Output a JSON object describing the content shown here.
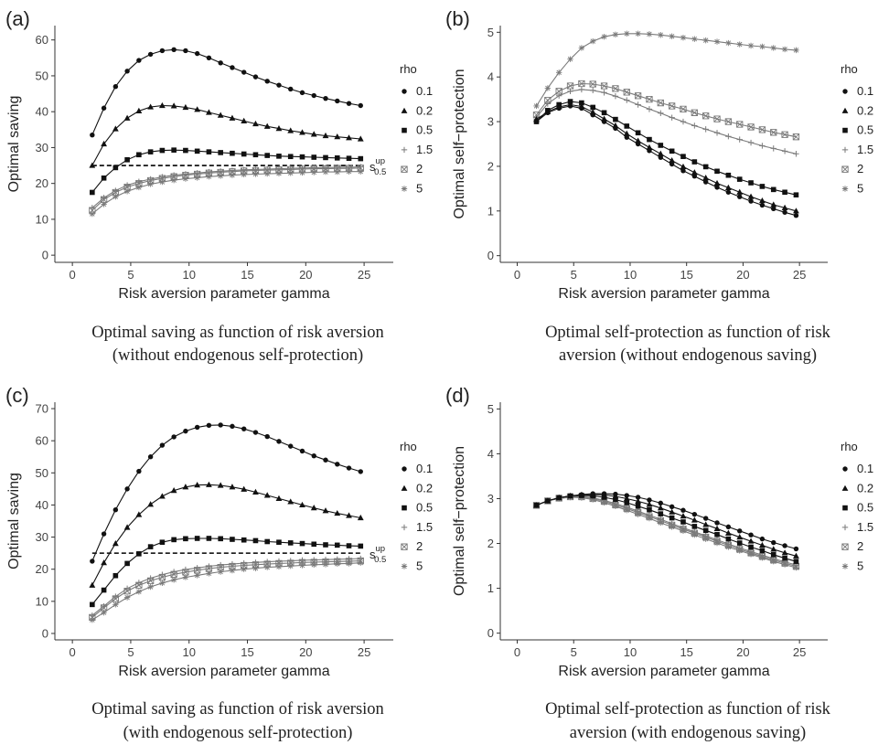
{
  "chart_data": [
    {
      "type": "line",
      "panel_label": "(a)",
      "caption_lines": [
        "Optimal saving as function of risk aversion",
        "(without endogenous self-protection)"
      ],
      "xlabel": "Risk aversion parameter gamma",
      "ylabel": "Optimal saving",
      "xlim": [
        -1.5,
        27.5
      ],
      "ylim": [
        -2,
        64
      ],
      "xticks": [
        0,
        5,
        10,
        15,
        20,
        25
      ],
      "yticks": [
        0,
        10,
        20,
        30,
        40,
        50,
        60
      ],
      "grid": false,
      "legend": {
        "title": "rho",
        "position": "right",
        "entries": [
          "0.1",
          "0.2",
          "0.5",
          "1.5",
          "2",
          "5"
        ]
      },
      "x": [
        1.7,
        2.7,
        3.7,
        4.7,
        5.7,
        6.7,
        7.7,
        8.7,
        9.7,
        10.7,
        11.7,
        12.7,
        13.7,
        14.7,
        15.7,
        16.7,
        17.7,
        18.7,
        19.7,
        20.7,
        21.7,
        22.7,
        23.7,
        24.7
      ],
      "series": [
        {
          "name": "0.1",
          "marker": "circle",
          "values": [
            33.5,
            41.0,
            47.0,
            51.3,
            54.3,
            56.0,
            57.0,
            57.3,
            57.0,
            56.2,
            55.0,
            53.6,
            52.3,
            51.0,
            49.7,
            48.5,
            47.4,
            46.3,
            45.3,
            44.5,
            43.7,
            43.0,
            42.3,
            41.7
          ]
        },
        {
          "name": "0.2",
          "marker": "triangle",
          "values": [
            25.0,
            31.0,
            35.2,
            38.2,
            40.2,
            41.3,
            41.7,
            41.6,
            41.2,
            40.6,
            39.8,
            39.0,
            38.2,
            37.4,
            36.6,
            35.9,
            35.3,
            34.7,
            34.2,
            33.7,
            33.3,
            33.0,
            32.7,
            32.4
          ]
        },
        {
          "name": "0.5",
          "marker": "square",
          "values": [
            17.5,
            21.5,
            24.4,
            26.6,
            28.0,
            28.8,
            29.2,
            29.3,
            29.2,
            29.0,
            28.8,
            28.6,
            28.4,
            28.2,
            28.0,
            27.8,
            27.6,
            27.5,
            27.4,
            27.3,
            27.2,
            27.1,
            27.0,
            26.9
          ]
        },
        {
          "name": "1.5",
          "marker": "plus",
          "values": [
            13.2,
            16.0,
            18.0,
            19.5,
            20.5,
            21.2,
            21.8,
            22.3,
            22.6,
            22.9,
            23.2,
            23.4,
            23.6,
            23.8,
            23.9,
            24.0,
            24.1,
            24.2,
            24.3,
            24.4,
            24.4,
            24.5,
            24.5,
            24.6
          ]
        },
        {
          "name": "2",
          "marker": "boxx",
          "values": [
            12.5,
            15.5,
            17.5,
            19.0,
            20.0,
            20.8,
            21.4,
            21.9,
            22.3,
            22.6,
            22.9,
            23.1,
            23.3,
            23.5,
            23.6,
            23.7,
            23.8,
            23.9,
            24.0,
            24.1,
            24.1,
            24.2,
            24.2,
            24.3
          ]
        },
        {
          "name": "5",
          "marker": "star",
          "values": [
            11.5,
            14.2,
            16.3,
            17.8,
            18.9,
            19.8,
            20.4,
            20.9,
            21.3,
            21.6,
            21.9,
            22.1,
            22.3,
            22.5,
            22.6,
            22.7,
            22.8,
            22.9,
            23.0,
            23.1,
            23.2,
            23.2,
            23.3,
            23.3
          ]
        }
      ],
      "reference_line": {
        "y": 25.0,
        "x_range": [
          1.7,
          24.7
        ],
        "style": "dashed",
        "label": "s",
        "label_sup": "up",
        "label_sub": "0.5"
      }
    },
    {
      "type": "line",
      "panel_label": "(b)",
      "caption_lines": [
        "Optimal self-protection as function of risk",
        "aversion (without endogenous saving)"
      ],
      "xlabel": "Risk aversion parameter gamma",
      "ylabel": "Optimal self−protection",
      "xlim": [
        -1.5,
        27.5
      ],
      "ylim": [
        -0.15,
        5.15
      ],
      "xticks": [
        0,
        5,
        10,
        15,
        20,
        25
      ],
      "yticks": [
        0,
        1,
        2,
        3,
        4,
        5
      ],
      "grid": false,
      "legend": {
        "title": "rho",
        "position": "right",
        "entries": [
          "0.1",
          "0.2",
          "0.5",
          "1.5",
          "2",
          "5"
        ]
      },
      "x": [
        1.7,
        2.7,
        3.7,
        4.7,
        5.7,
        6.7,
        7.7,
        8.7,
        9.7,
        10.7,
        11.7,
        12.7,
        13.7,
        14.7,
        15.7,
        16.7,
        17.7,
        18.7,
        19.7,
        20.7,
        21.7,
        22.7,
        23.7,
        24.7
      ],
      "series": [
        {
          "name": "0.1",
          "marker": "circle",
          "values": [
            3.0,
            3.2,
            3.3,
            3.35,
            3.3,
            3.15,
            3.0,
            2.85,
            2.65,
            2.5,
            2.35,
            2.2,
            2.05,
            1.9,
            1.78,
            1.65,
            1.53,
            1.42,
            1.32,
            1.22,
            1.13,
            1.05,
            0.97,
            0.9
          ]
        },
        {
          "name": "0.2",
          "marker": "triangle",
          "values": [
            3.05,
            3.22,
            3.33,
            3.38,
            3.34,
            3.21,
            3.06,
            2.91,
            2.73,
            2.57,
            2.42,
            2.28,
            2.13,
            1.99,
            1.86,
            1.74,
            1.62,
            1.52,
            1.42,
            1.32,
            1.23,
            1.14,
            1.07,
            1.0
          ]
        },
        {
          "name": "0.5",
          "marker": "square",
          "values": [
            3.0,
            3.25,
            3.38,
            3.45,
            3.42,
            3.32,
            3.2,
            3.05,
            2.9,
            2.75,
            2.6,
            2.47,
            2.34,
            2.22,
            2.1,
            1.99,
            1.89,
            1.8,
            1.71,
            1.63,
            1.55,
            1.48,
            1.42,
            1.36
          ]
        },
        {
          "name": "1.5",
          "marker": "plus",
          "values": [
            3.1,
            3.4,
            3.58,
            3.68,
            3.72,
            3.7,
            3.65,
            3.57,
            3.48,
            3.38,
            3.28,
            3.19,
            3.09,
            3.0,
            2.91,
            2.83,
            2.75,
            2.67,
            2.6,
            2.53,
            2.46,
            2.4,
            2.34,
            2.28
          ]
        },
        {
          "name": "2",
          "marker": "boxx",
          "values": [
            3.15,
            3.48,
            3.68,
            3.8,
            3.85,
            3.84,
            3.8,
            3.74,
            3.66,
            3.58,
            3.5,
            3.42,
            3.35,
            3.28,
            3.2,
            3.13,
            3.06,
            3.0,
            2.94,
            2.88,
            2.82,
            2.76,
            2.71,
            2.66
          ]
        },
        {
          "name": "5",
          "marker": "star",
          "values": [
            3.35,
            3.75,
            4.1,
            4.4,
            4.65,
            4.8,
            4.9,
            4.95,
            4.97,
            4.97,
            4.96,
            4.94,
            4.91,
            4.88,
            4.85,
            4.82,
            4.79,
            4.76,
            4.73,
            4.7,
            4.68,
            4.65,
            4.62,
            4.6
          ]
        }
      ]
    },
    {
      "type": "line",
      "panel_label": "(c)",
      "caption_lines": [
        "Optimal saving as function of risk aversion",
        "(with endogenous self-protection)"
      ],
      "xlabel": "Risk aversion parameter gamma",
      "ylabel": "Optimal saving",
      "xlim": [
        -1.5,
        27.5
      ],
      "ylim": [
        -2,
        72
      ],
      "xticks": [
        0,
        5,
        10,
        15,
        20,
        25
      ],
      "yticks": [
        0,
        10,
        20,
        30,
        40,
        50,
        60,
        70
      ],
      "grid": false,
      "legend": {
        "title": "rho",
        "position": "right",
        "entries": [
          "0.1",
          "0.2",
          "0.5",
          "1.5",
          "2",
          "5"
        ]
      },
      "x": [
        1.7,
        2.7,
        3.7,
        4.7,
        5.7,
        6.7,
        7.7,
        8.7,
        9.7,
        10.7,
        11.7,
        12.7,
        13.7,
        14.7,
        15.7,
        16.7,
        17.7,
        18.7,
        19.7,
        20.7,
        21.7,
        22.7,
        23.7,
        24.7
      ],
      "series": [
        {
          "name": "0.1",
          "marker": "circle",
          "values": [
            22.5,
            31.0,
            38.5,
            45.0,
            50.5,
            55.0,
            58.6,
            61.2,
            63.0,
            64.2,
            64.8,
            64.9,
            64.5,
            63.7,
            62.6,
            61.3,
            59.8,
            58.3,
            56.8,
            55.3,
            54.0,
            52.7,
            51.5,
            50.4
          ]
        },
        {
          "name": "0.2",
          "marker": "triangle",
          "values": [
            15.0,
            22.0,
            28.0,
            33.0,
            37.0,
            40.2,
            42.7,
            44.5,
            45.6,
            46.2,
            46.3,
            46.1,
            45.6,
            44.9,
            44.0,
            43.0,
            42.0,
            41.0,
            40.0,
            39.1,
            38.2,
            37.4,
            36.7,
            36.0
          ]
        },
        {
          "name": "0.5",
          "marker": "square",
          "values": [
            9.0,
            13.5,
            18.0,
            21.8,
            24.8,
            27.0,
            28.4,
            29.2,
            29.5,
            29.6,
            29.6,
            29.5,
            29.3,
            29.1,
            28.9,
            28.6,
            28.4,
            28.2,
            28.0,
            27.8,
            27.6,
            27.5,
            27.3,
            27.2
          ]
        },
        {
          "name": "1.5",
          "marker": "plus",
          "values": [
            5.6,
            8.5,
            11.5,
            14.0,
            15.8,
            17.2,
            18.3,
            19.2,
            19.9,
            20.4,
            20.9,
            21.3,
            21.6,
            21.9,
            22.1,
            22.3,
            22.5,
            22.6,
            22.8,
            22.9,
            23.0,
            23.1,
            23.2,
            23.3
          ]
        },
        {
          "name": "2",
          "marker": "boxx",
          "values": [
            5.0,
            8.0,
            10.8,
            13.2,
            15.0,
            16.4,
            17.5,
            18.4,
            19.1,
            19.7,
            20.2,
            20.6,
            20.9,
            21.2,
            21.4,
            21.6,
            21.8,
            21.9,
            22.1,
            22.2,
            22.3,
            22.4,
            22.5,
            22.6
          ]
        },
        {
          "name": "5",
          "marker": "star",
          "values": [
            4.2,
            6.5,
            9.0,
            11.2,
            13.0,
            14.5,
            15.7,
            16.7,
            17.5,
            18.1,
            18.7,
            19.2,
            19.6,
            20.0,
            20.3,
            20.6,
            20.8,
            21.0,
            21.2,
            21.4,
            21.5,
            21.7,
            21.8,
            22.0
          ]
        }
      ],
      "reference_line": {
        "y": 25.0,
        "x_range": [
          1.7,
          24.7
        ],
        "style": "dashed",
        "label": "s",
        "label_sup": "up",
        "label_sub": "0.5"
      }
    },
    {
      "type": "line",
      "panel_label": "(d)",
      "caption_lines": [
        "Optimal self-protection as function of risk",
        "aversion (with endogenous saving)"
      ],
      "xlabel": "Risk aversion parameter gamma",
      "ylabel": "Optimal self−protection",
      "xlim": [
        -1.5,
        27.5
      ],
      "ylim": [
        -0.15,
        5.15
      ],
      "xticks": [
        0,
        5,
        10,
        15,
        20,
        25
      ],
      "yticks": [
        0,
        1,
        2,
        3,
        4,
        5
      ],
      "grid": false,
      "legend": {
        "title": "rho",
        "position": "right",
        "entries": [
          "0.1",
          "0.2",
          "0.5",
          "1.5",
          "2",
          "5"
        ]
      },
      "x": [
        1.7,
        2.7,
        3.7,
        4.7,
        5.7,
        6.7,
        7.7,
        8.7,
        9.7,
        10.7,
        11.7,
        12.7,
        13.7,
        14.7,
        15.7,
        16.7,
        17.7,
        18.7,
        19.7,
        20.7,
        21.7,
        22.7,
        23.7,
        24.7
      ],
      "series": [
        {
          "name": "0.1",
          "marker": "circle",
          "values": [
            2.85,
            2.95,
            3.02,
            3.06,
            3.09,
            3.11,
            3.11,
            3.1,
            3.07,
            3.03,
            2.97,
            2.9,
            2.82,
            2.74,
            2.65,
            2.56,
            2.46,
            2.37,
            2.28,
            2.19,
            2.1,
            2.02,
            1.95,
            1.88
          ]
        },
        {
          "name": "0.2",
          "marker": "triangle",
          "values": [
            2.85,
            2.95,
            3.02,
            3.06,
            3.08,
            3.09,
            3.08,
            3.05,
            3.0,
            2.94,
            2.87,
            2.79,
            2.7,
            2.61,
            2.52,
            2.42,
            2.33,
            2.23,
            2.14,
            2.05,
            1.96,
            1.87,
            1.79,
            1.72
          ]
        },
        {
          "name": "0.5",
          "marker": "square",
          "values": [
            2.85,
            2.95,
            3.02,
            3.06,
            3.07,
            3.06,
            3.03,
            2.98,
            2.91,
            2.83,
            2.75,
            2.66,
            2.57,
            2.48,
            2.38,
            2.29,
            2.2,
            2.1,
            2.01,
            1.92,
            1.84,
            1.75,
            1.67,
            1.6
          ]
        },
        {
          "name": "1.5",
          "marker": "plus",
          "values": [
            2.85,
            2.95,
            3.02,
            3.05,
            3.05,
            3.02,
            2.96,
            2.89,
            2.81,
            2.72,
            2.63,
            2.54,
            2.44,
            2.35,
            2.26,
            2.17,
            2.08,
            1.99,
            1.9,
            1.82,
            1.74,
            1.66,
            1.59,
            1.52
          ]
        },
        {
          "name": "2",
          "marker": "boxx",
          "values": [
            2.85,
            2.95,
            3.01,
            3.04,
            3.04,
            3.0,
            2.94,
            2.86,
            2.78,
            2.69,
            2.6,
            2.51,
            2.41,
            2.32,
            2.23,
            2.14,
            2.05,
            1.96,
            1.87,
            1.79,
            1.71,
            1.63,
            1.56,
            1.49
          ]
        },
        {
          "name": "5",
          "marker": "star",
          "values": [
            2.85,
            2.95,
            3.0,
            3.03,
            3.02,
            2.98,
            2.91,
            2.83,
            2.74,
            2.65,
            2.56,
            2.46,
            2.37,
            2.28,
            2.19,
            2.1,
            2.01,
            1.92,
            1.84,
            1.76,
            1.68,
            1.6,
            1.53,
            1.46
          ]
        }
      ]
    }
  ],
  "colors": {
    "0.1": "#111111",
    "0.2": "#111111",
    "0.5": "#111111",
    "1.5": "#7a7a7a",
    "2": "#7a7a7a",
    "5": "#7a7a7a",
    "axis": "#333333",
    "reference": "#000000"
  }
}
